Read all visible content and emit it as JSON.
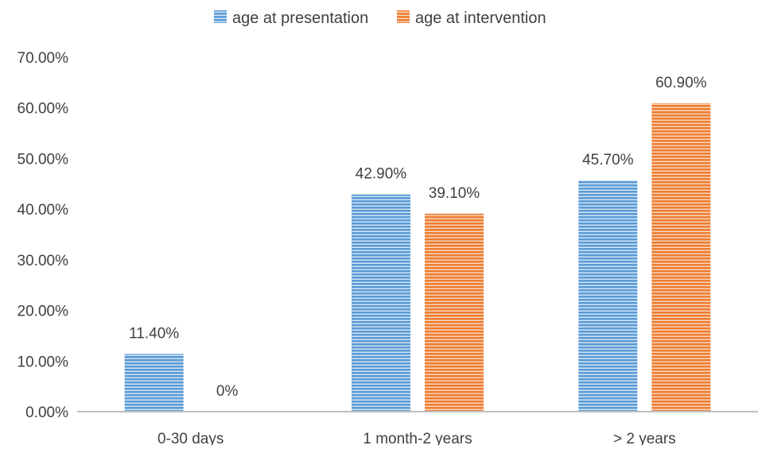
{
  "chart_data": {
    "type": "bar",
    "title": "",
    "xlabel": "",
    "ylabel": "",
    "categories": [
      "0-30 days",
      "1 month-2 years",
      "> 2 years"
    ],
    "series": [
      {
        "name": "age at presentation",
        "values": [
          11.4,
          42.9,
          45.7
        ],
        "labels": [
          "11.40%",
          "42.90%",
          "45.70%"
        ],
        "color": "#5b9bd5"
      },
      {
        "name": "age at intervention",
        "values": [
          0,
          39.1,
          60.9
        ],
        "labels": [
          "0%",
          "39.10%",
          "60.90%"
        ],
        "color": "#ed7d31"
      }
    ],
    "ylim": [
      0,
      70
    ],
    "yticks": [
      0,
      10,
      20,
      30,
      40,
      50,
      60,
      70
    ],
    "ytick_labels": [
      "0.00%",
      "10.00%",
      "20.00%",
      "30.00%",
      "40.00%",
      "50.00%",
      "60.00%",
      "70.00%"
    ],
    "grid": false,
    "legend": "top-center"
  }
}
